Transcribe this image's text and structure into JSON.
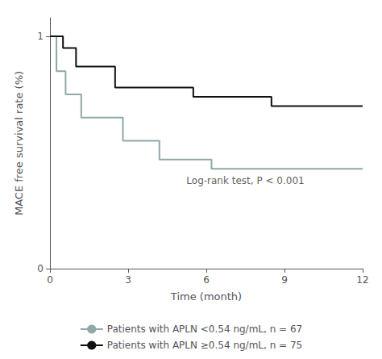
{
  "chart_data": {
    "type": "line",
    "xlabel": "Time (month)",
    "ylabel": "MACE free survival rate (%)",
    "xlim": [
      0,
      12
    ],
    "ylim": [
      0,
      1.08
    ],
    "xticks": [
      0,
      3,
      6,
      9,
      12
    ],
    "yticks": [
      0,
      1
    ],
    "grid": false,
    "legend": "bottom",
    "annotations": [
      {
        "text": "Log-rank test, P < 0.001",
        "x": 7.5,
        "y": 0.38
      }
    ],
    "series": [
      {
        "name": "Patients with APLN <0.54 ng/mL, n = 67",
        "color": "#8fa8a8",
        "x": [
          0,
          0.25,
          0.25,
          0.6,
          0.6,
          1.2,
          1.2,
          2.8,
          2.8,
          4.2,
          4.2,
          6.2,
          6.2,
          12
        ],
        "values": [
          1.0,
          1.0,
          0.85,
          0.85,
          0.75,
          0.75,
          0.65,
          0.65,
          0.55,
          0.55,
          0.47,
          0.47,
          0.43,
          0.43
        ]
      },
      {
        "name": "Patients with APLN ≥0.54 ng/mL, n = 75",
        "color": "#111111",
        "x": [
          0,
          0.5,
          0.5,
          1.0,
          1.0,
          2.5,
          2.5,
          5.5,
          5.5,
          8.5,
          8.5,
          12
        ],
        "values": [
          1.0,
          1.0,
          0.95,
          0.95,
          0.87,
          0.87,
          0.78,
          0.78,
          0.74,
          0.74,
          0.7,
          0.7
        ]
      }
    ]
  }
}
